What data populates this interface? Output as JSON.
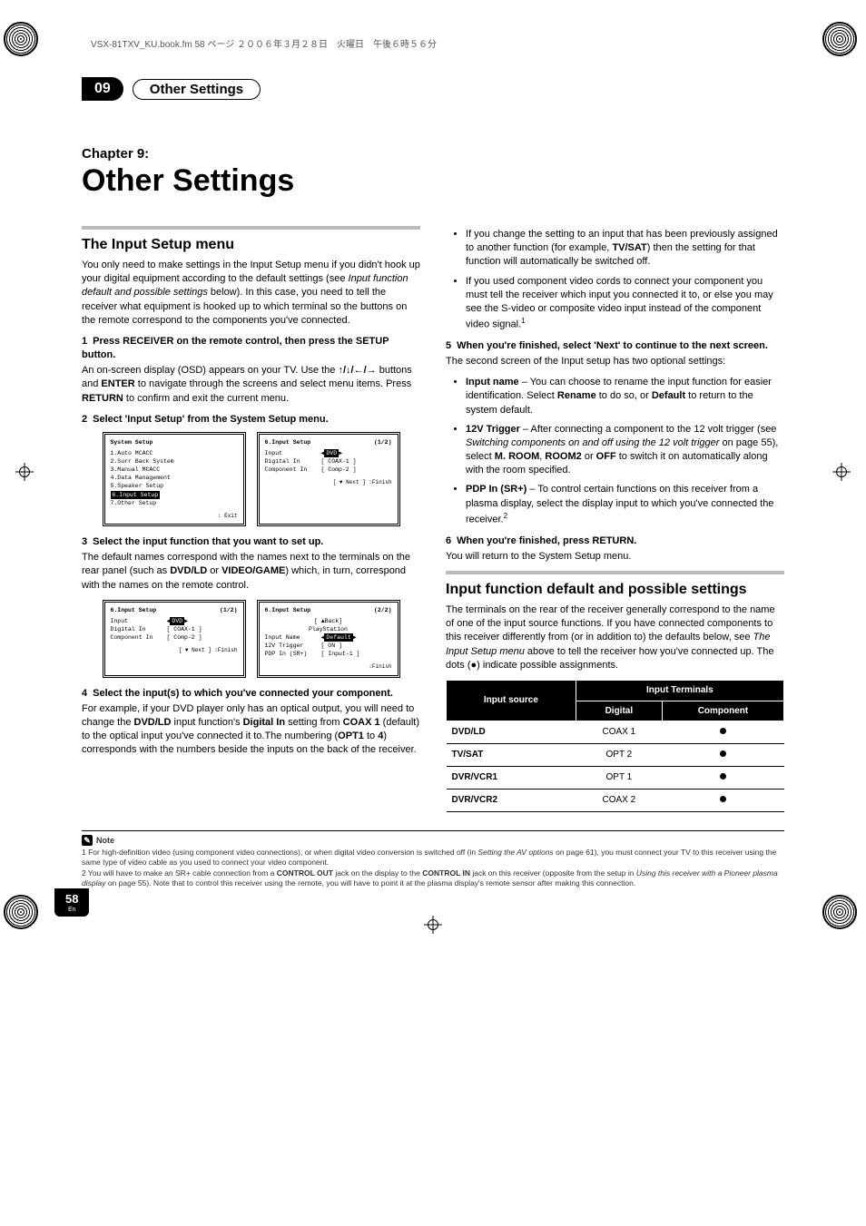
{
  "header_line": "VSX-81TXV_KU.book.fm  58 ページ  ２００６年３月２８日　火曜日　午後６時５６分",
  "ribbon": {
    "num": "09",
    "title": "Other Settings"
  },
  "chapter": {
    "label": "Chapter 9:",
    "title": "Other Settings"
  },
  "left": {
    "h_input_setup": "The Input Setup menu",
    "p_intro": "You only need to make settings in the Input Setup menu if you didn't hook up your digital equipment according to the default settings (see ",
    "p_intro_em": "Input function default and possible settings",
    "p_intro2": " below). In this case, you need to tell the receiver what equipment is hooked up to which terminal so the buttons on the remote correspond to the components you've connected.",
    "s1": "Press RECEIVER on the remote control, then press the SETUP button.",
    "p_s1a": "An on-screen display (OSD) appears on your TV. Use the ",
    "p_s1b": " buttons and ",
    "p_s1c": " to navigate through the screens and select menu items. Press ",
    "p_s1d": " to confirm and exit the current menu.",
    "enter": "ENTER",
    "return": "RETURN",
    "arrows": "↑/↓/←/→",
    "s2": "Select 'Input Setup' from the System Setup menu.",
    "osd_sys_title": "System  Setup",
    "osd_sys_items": [
      "1.Auto  MCACC",
      "2.Surr  Back  System",
      "3.Manual  MCACC",
      "4.Data  Management",
      "5.Speaker  Setup",
      "6.Input  Setup",
      "7.Other  Setup"
    ],
    "osd_sys_sel_index": 5,
    "osd_sys_footer": ": Exit",
    "osd_in1_title": "6.Input  Setup",
    "osd_in1_page": "(1/2)",
    "osd_in1_rows": [
      {
        "k": "Input",
        "v": "DVD",
        "sel": true,
        "arrows": true
      },
      {
        "k": "Digital  In",
        "v": "[  COAX-1  ]"
      },
      {
        "k": "Component In",
        "v": "[  Comp-2  ]"
      }
    ],
    "osd_in1_footer": "[ ▼ Next ]      :Finish",
    "s3": "Select the input function that you want to set up.",
    "p_s3": "The default names correspond with the names next to the terminals on the rear panel (such as ",
    "p_s3_b1": "DVD/LD",
    "p_s3_mid": " or ",
    "p_s3_b2": "VIDEO/GAME",
    "p_s3_end": ") which, in turn, correspond with the names on the remote control.",
    "osd_in2a_title": "6.Input  Setup",
    "osd_in2a_page": "(1/2)",
    "osd_in2a_rows": [
      {
        "k": "Input",
        "v": "DVD",
        "sel": true,
        "arrows": true
      },
      {
        "k": "Digital  In",
        "v": "[  COAX-1  ]"
      },
      {
        "k": "Component In",
        "v": "[  Comp-2  ]"
      }
    ],
    "osd_in2a_footer": "[ ▼ Next ]     :Finish",
    "osd_in2b_title": "6.Input  Setup",
    "osd_in2b_page": "(2/2)",
    "osd_in2b_back": "[ ▲Back]",
    "osd_in2b_sub": "PlayStation",
    "osd_in2b_rows": [
      {
        "k": "Input  Name",
        "v": "Default",
        "sel": true,
        "arrows": true
      },
      {
        "k": "12V  Trigger",
        "v": "[    ON    ]"
      },
      {
        "k": "PDP In (SR+)",
        "v": "[  Input-1  ]"
      }
    ],
    "osd_in2b_footer": ":Finish",
    "s4": "Select the input(s) to which you've connected your component.",
    "p_s4a": "For example, if your DVD player only has an optical output, you will need to change the ",
    "p_s4_b1": "DVD/LD",
    "p_s4b": " input function's ",
    "p_s4_b2": "Digital In",
    "p_s4c": " setting from ",
    "p_s4_b3": "COAX 1",
    "p_s4d": " (default) to the optical input you've connected it to.The numbering (",
    "p_s4_b4": "OPT1",
    "p_s4e": " to ",
    "p_s4_b5": "4",
    "p_s4f": ") corresponds with the numbers beside the inputs on the back of the receiver."
  },
  "right": {
    "b1a": "If you change the setting to an input that has been previously assigned to another function (for example, ",
    "b1b": "TV/SAT",
    "b1c": ") then the setting for that function will automatically be switched off.",
    "b2": "If you used component video cords to connect your component you must tell the receiver which input you connected it to, or else you may see the S-video or composite video input instead of the component video signal.",
    "sup1": "1",
    "s5": "When you're finished, select 'Next' to continue to the next screen.",
    "p_s5": "The second screen of the Input setup has two optional settings:",
    "bi_name_b": "Input name",
    "bi_name_t": " – You can choose to rename the input function for easier identification. Select ",
    "bi_name_b2": "Rename",
    "bi_name_t2": " to do so, or ",
    "bi_name_b3": "Default",
    "bi_name_t3": " to return to the system default.",
    "bi_trig_b": "12V Trigger",
    "bi_trig_t": " – After connecting a component to the 12 volt trigger (see ",
    "bi_trig_em": "Switching components on and off using the 12 volt trigger",
    "bi_trig_t2": " on page 55), select ",
    "bi_trig_b2": "M. ROOM",
    "bi_trig_t3": ", ",
    "bi_trig_b3": "ROOM2",
    "bi_trig_t4": " or ",
    "bi_trig_b4": "OFF",
    "bi_trig_t5": "  to switch it on automatically along with the room specified.",
    "bi_pdp_b": "PDP In (SR+)",
    "bi_pdp_t": " – To control certain functions on this receiver from a plasma display, select the display input to which you've connected the receiver.",
    "sup2": "2",
    "s6": "When you're finished, press RETURN.",
    "p_s6": "You will return to the System Setup menu.",
    "h_defaults": "Input function default and possible settings",
    "p_def1": "The terminals on the rear of the receiver generally correspond to the name of one of the input source functions. If you have connected components to this receiver differently from (or in addition to) the defaults below, see ",
    "p_def_em": "The Input Setup menu",
    "p_def2": " above to tell the receiver how you've connected up. The dots (●) indicate possible assignments.",
    "table": {
      "th_src": "Input source",
      "th_grp": "Input Terminals",
      "th_dig": "Digital",
      "th_comp": "Component",
      "rows": [
        {
          "src": "DVD/LD",
          "dig": "COAX 1",
          "comp": true
        },
        {
          "src": "TV/SAT",
          "dig": "OPT 2",
          "comp": true
        },
        {
          "src": "DVR/VCR1",
          "dig": "OPT 1",
          "comp": true
        },
        {
          "src": "DVR/VCR2",
          "dig": "COAX 2",
          "comp": true
        }
      ]
    }
  },
  "footnotes": {
    "note_label": "Note",
    "f1": "1  For high-definition video (using component video connections), or when digital video conversion is switched off (in ",
    "f1_em": "Setting the AV options",
    "f1b": " on page 61), you must connect your TV to this receiver using the same type of video cable as you used to connect your video component.",
    "f2a": "2  You will have to make an SR+ cable connection from a ",
    "f2b1": "CONTROL OUT",
    "f2b": " jack on the display to the ",
    "f2b2": "CONTROL IN",
    "f2c": " jack on this receiver (opposite from the setup in ",
    "f2_em": "Using this receiver with a Pioneer plasma display",
    "f2d": " on page 55). Note that to control this receiver using the remote, you will have to point it at the plasma display's remote sensor after making this connection."
  },
  "page": {
    "num": "58",
    "lang": "En"
  }
}
